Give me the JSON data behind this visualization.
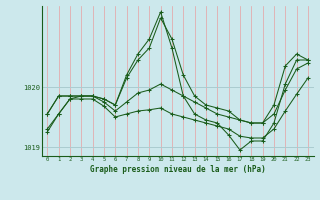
{
  "title": "Graphe pression niveau de la mer (hPa)",
  "bg_color": "#cce8ec",
  "grid_color_h": "#aaccd0",
  "grid_color_v": "#e8a0a0",
  "line_color": "#1a5c1a",
  "xlim": [
    -0.5,
    23.5
  ],
  "ylim": [
    1018.85,
    1021.35
  ],
  "yticks": [
    1019,
    1020
  ],
  "xticks": [
    0,
    1,
    2,
    3,
    4,
    5,
    6,
    7,
    8,
    9,
    10,
    11,
    12,
    13,
    14,
    15,
    16,
    17,
    18,
    19,
    20,
    21,
    22,
    23
  ],
  "series": [
    [
      1019.55,
      1019.85,
      1019.85,
      1019.85,
      1019.85,
      1019.8,
      1019.7,
      1020.15,
      1020.45,
      1020.65,
      1021.15,
      1020.8,
      1020.2,
      1019.85,
      1019.7,
      1019.65,
      1019.6,
      1019.45,
      1019.4,
      1019.4,
      1019.7,
      1020.35,
      1020.55,
      1020.45
    ],
    [
      1019.55,
      1019.85,
      1019.85,
      1019.85,
      1019.85,
      1019.8,
      1019.7,
      1020.2,
      1020.55,
      1020.8,
      1021.25,
      1020.65,
      1019.85,
      1019.55,
      1019.45,
      1019.4,
      1019.2,
      1018.95,
      1019.1,
      1019.1,
      1019.4,
      1020.05,
      1020.45,
      1020.45
    ],
    [
      1019.3,
      1019.55,
      1019.8,
      1019.85,
      1019.85,
      1019.75,
      1019.6,
      1019.75,
      1019.9,
      1019.95,
      1020.05,
      1019.95,
      1019.85,
      1019.75,
      1019.65,
      1019.55,
      1019.5,
      1019.45,
      1019.4,
      1019.4,
      1019.55,
      1019.95,
      1020.3,
      1020.4
    ],
    [
      1019.25,
      1019.55,
      1019.8,
      1019.8,
      1019.8,
      1019.68,
      1019.5,
      1019.55,
      1019.6,
      1019.62,
      1019.65,
      1019.55,
      1019.5,
      1019.45,
      1019.4,
      1019.35,
      1019.3,
      1019.18,
      1019.15,
      1019.15,
      1019.3,
      1019.6,
      1019.88,
      1020.15
    ]
  ]
}
